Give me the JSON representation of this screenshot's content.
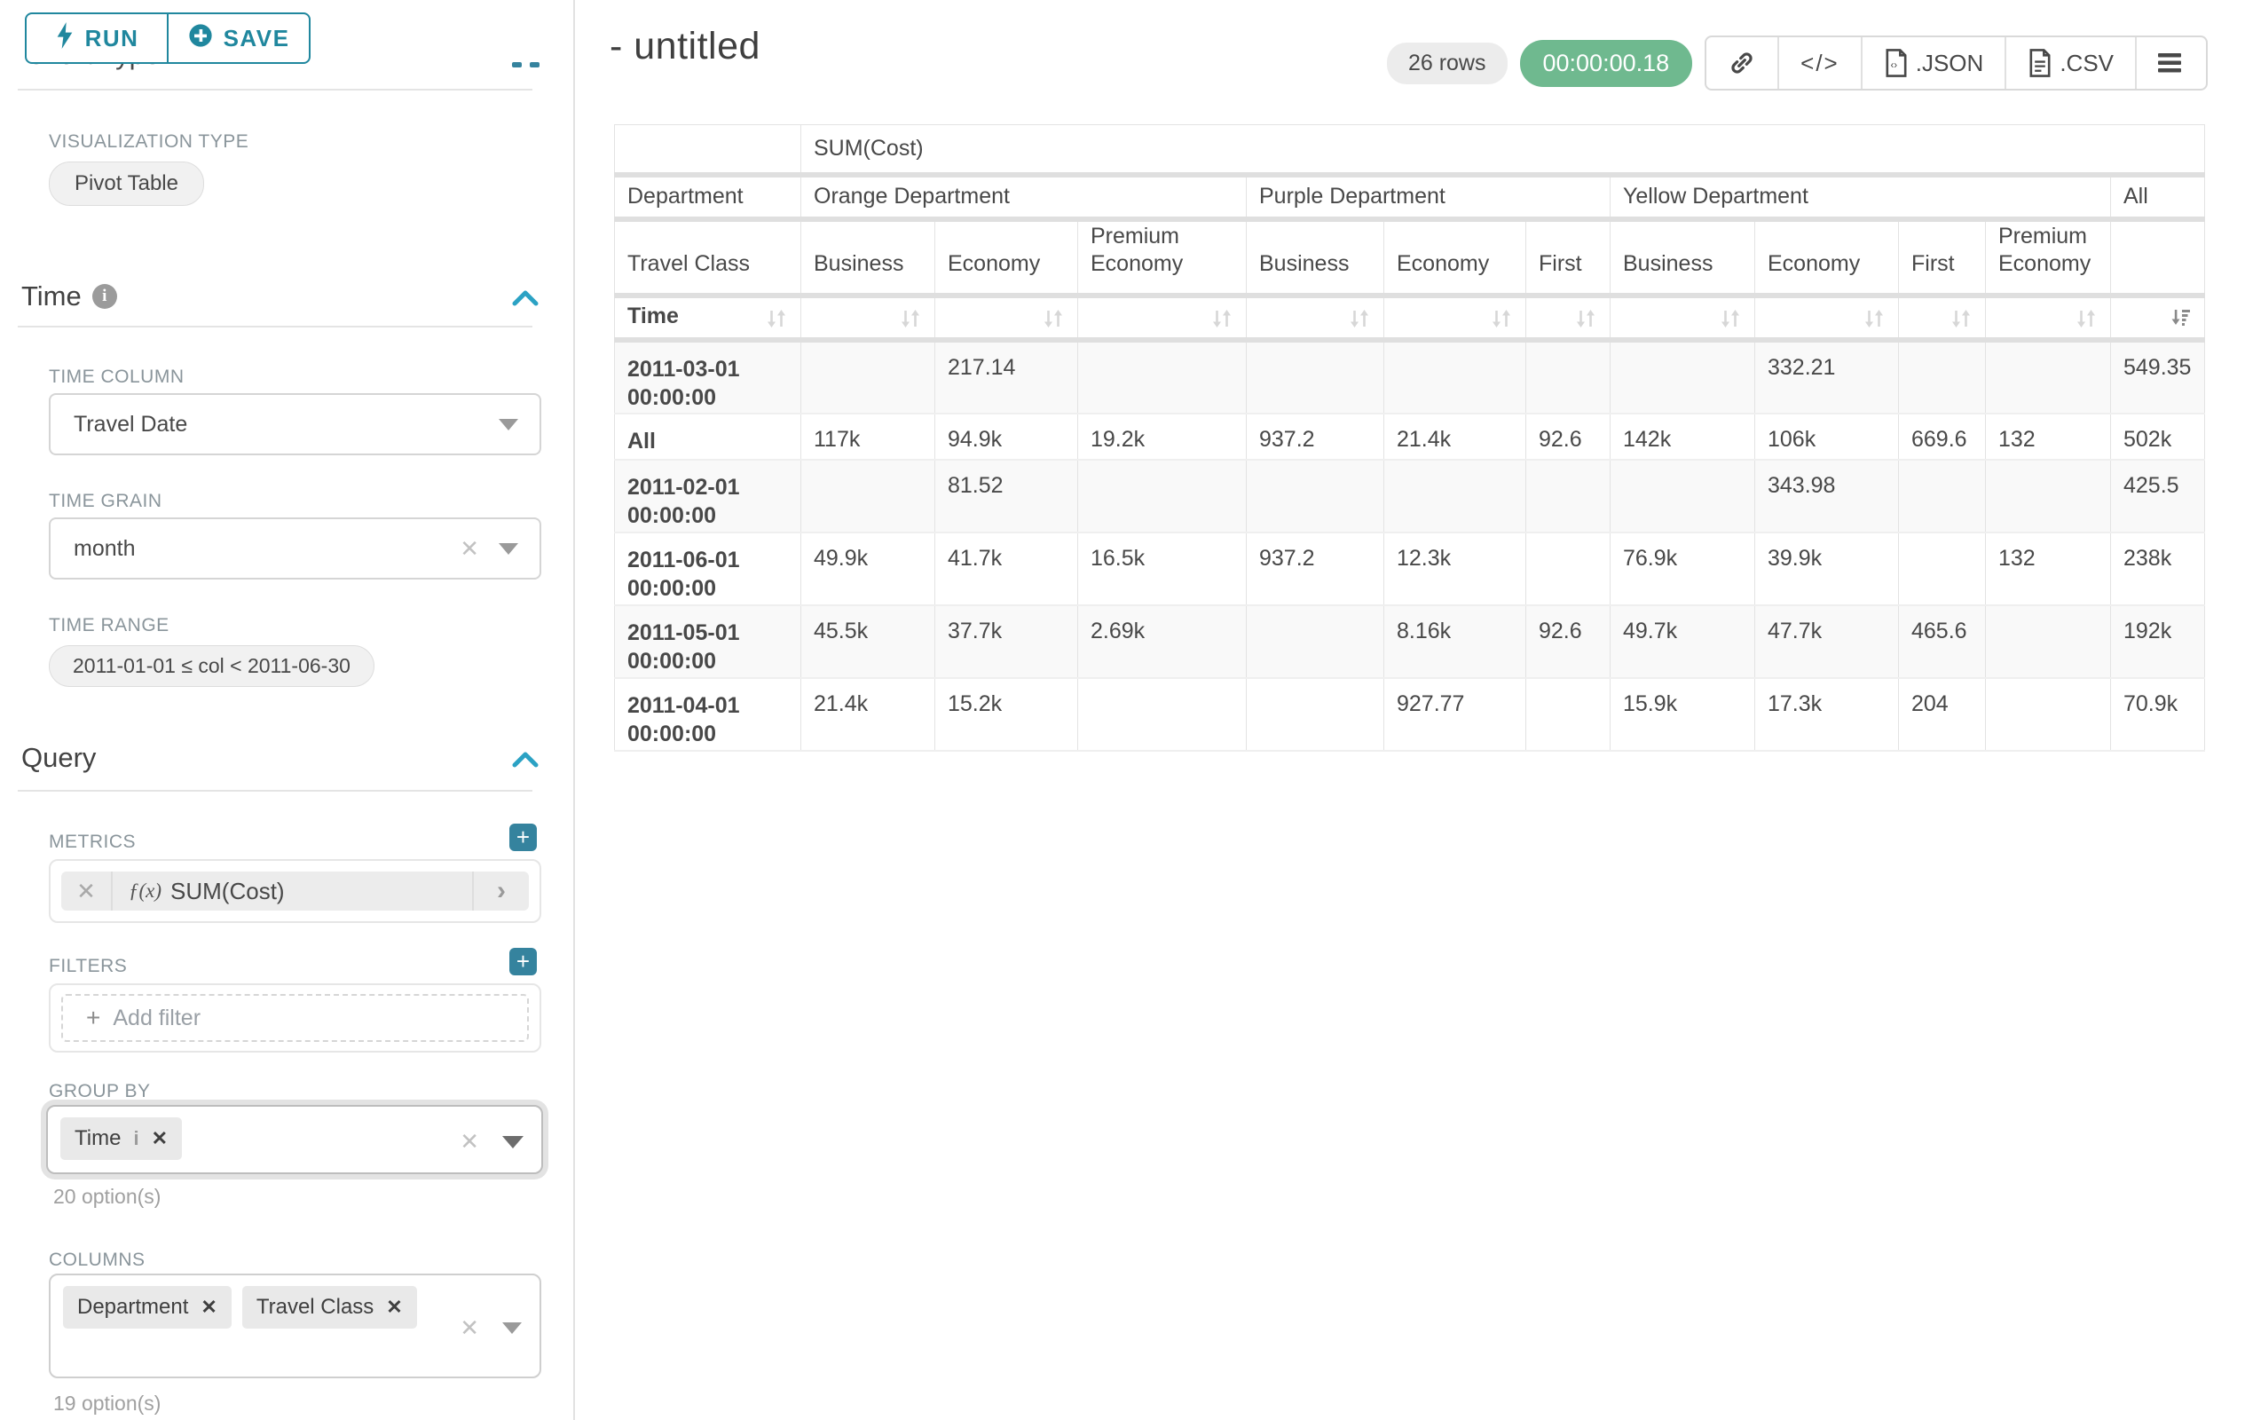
{
  "sidebar": {
    "run_label": "RUN",
    "save_label": "SAVE",
    "clipped_heading": "Chart Type",
    "viz": {
      "label": "VISUALIZATION TYPE",
      "value": "Pivot Table"
    },
    "time": {
      "title": "Time",
      "column_label": "TIME COLUMN",
      "column_value": "Travel Date",
      "grain_label": "TIME GRAIN",
      "grain_value": "month",
      "range_label": "TIME RANGE",
      "range_value": "2011-01-01 ≤ col < 2011-06-30"
    },
    "query": {
      "title": "Query",
      "metrics_label": "METRICS",
      "metric_fx": "ƒ(x)",
      "metric_value": "SUM(Cost)",
      "filters_label": "FILTERS",
      "add_filter_label": "Add filter",
      "groupby_label": "GROUP BY",
      "groupby_tags": [
        {
          "label": "Time",
          "info": true
        }
      ],
      "groupby_hint": "20 option(s)",
      "columns_label": "COLUMNS",
      "columns_tags": [
        {
          "label": "Department"
        },
        {
          "label": "Travel Class"
        }
      ],
      "columns_hint": "19 option(s)"
    }
  },
  "header": {
    "title": "- untitled",
    "rows_badge": "26 rows",
    "timer": "00:00:00.18",
    "json_label": ".JSON",
    "csv_label": ".CSV"
  },
  "pivot": {
    "metric_header": "SUM(Cost)",
    "row_dim_level1": "Department",
    "row_dim_level2": "Travel Class",
    "time_label": "Time",
    "col_groups": [
      {
        "label": "Orange Department",
        "cols": [
          "Business",
          "Economy",
          "Premium Economy"
        ]
      },
      {
        "label": "Purple Department",
        "cols": [
          "Business",
          "Economy",
          "First"
        ]
      },
      {
        "label": "Yellow Department",
        "cols": [
          "Business",
          "Economy",
          "First",
          "Premium Economy"
        ]
      },
      {
        "label": "All",
        "cols": [
          ""
        ]
      }
    ],
    "sorted_column_index": 10,
    "rows": [
      {
        "label": "2011-03-01 00:00:00",
        "values": [
          "",
          "217.14",
          "",
          "",
          "",
          "",
          "",
          "332.21",
          "",
          "",
          "549.35"
        ]
      },
      {
        "label": "All",
        "values": [
          "117k",
          "94.9k",
          "19.2k",
          "937.2",
          "21.4k",
          "92.6",
          "142k",
          "106k",
          "669.6",
          "132",
          "502k"
        ]
      },
      {
        "label": "2011-02-01 00:00:00",
        "values": [
          "",
          "81.52",
          "",
          "",
          "",
          "",
          "",
          "343.98",
          "",
          "",
          "425.5"
        ]
      },
      {
        "label": "2011-06-01 00:00:00",
        "values": [
          "49.9k",
          "41.7k",
          "16.5k",
          "937.2",
          "12.3k",
          "",
          "76.9k",
          "39.9k",
          "",
          "132",
          "238k"
        ]
      },
      {
        "label": "2011-05-01 00:00:00",
        "values": [
          "45.5k",
          "37.7k",
          "2.69k",
          "",
          "8.16k",
          "92.6",
          "49.7k",
          "47.7k",
          "465.6",
          "",
          "192k"
        ]
      },
      {
        "label": "2011-04-01 00:00:00",
        "values": [
          "21.4k",
          "15.2k",
          "",
          "",
          "927.77",
          "",
          "15.9k",
          "17.3k",
          "204",
          "",
          "70.9k"
        ]
      }
    ]
  }
}
